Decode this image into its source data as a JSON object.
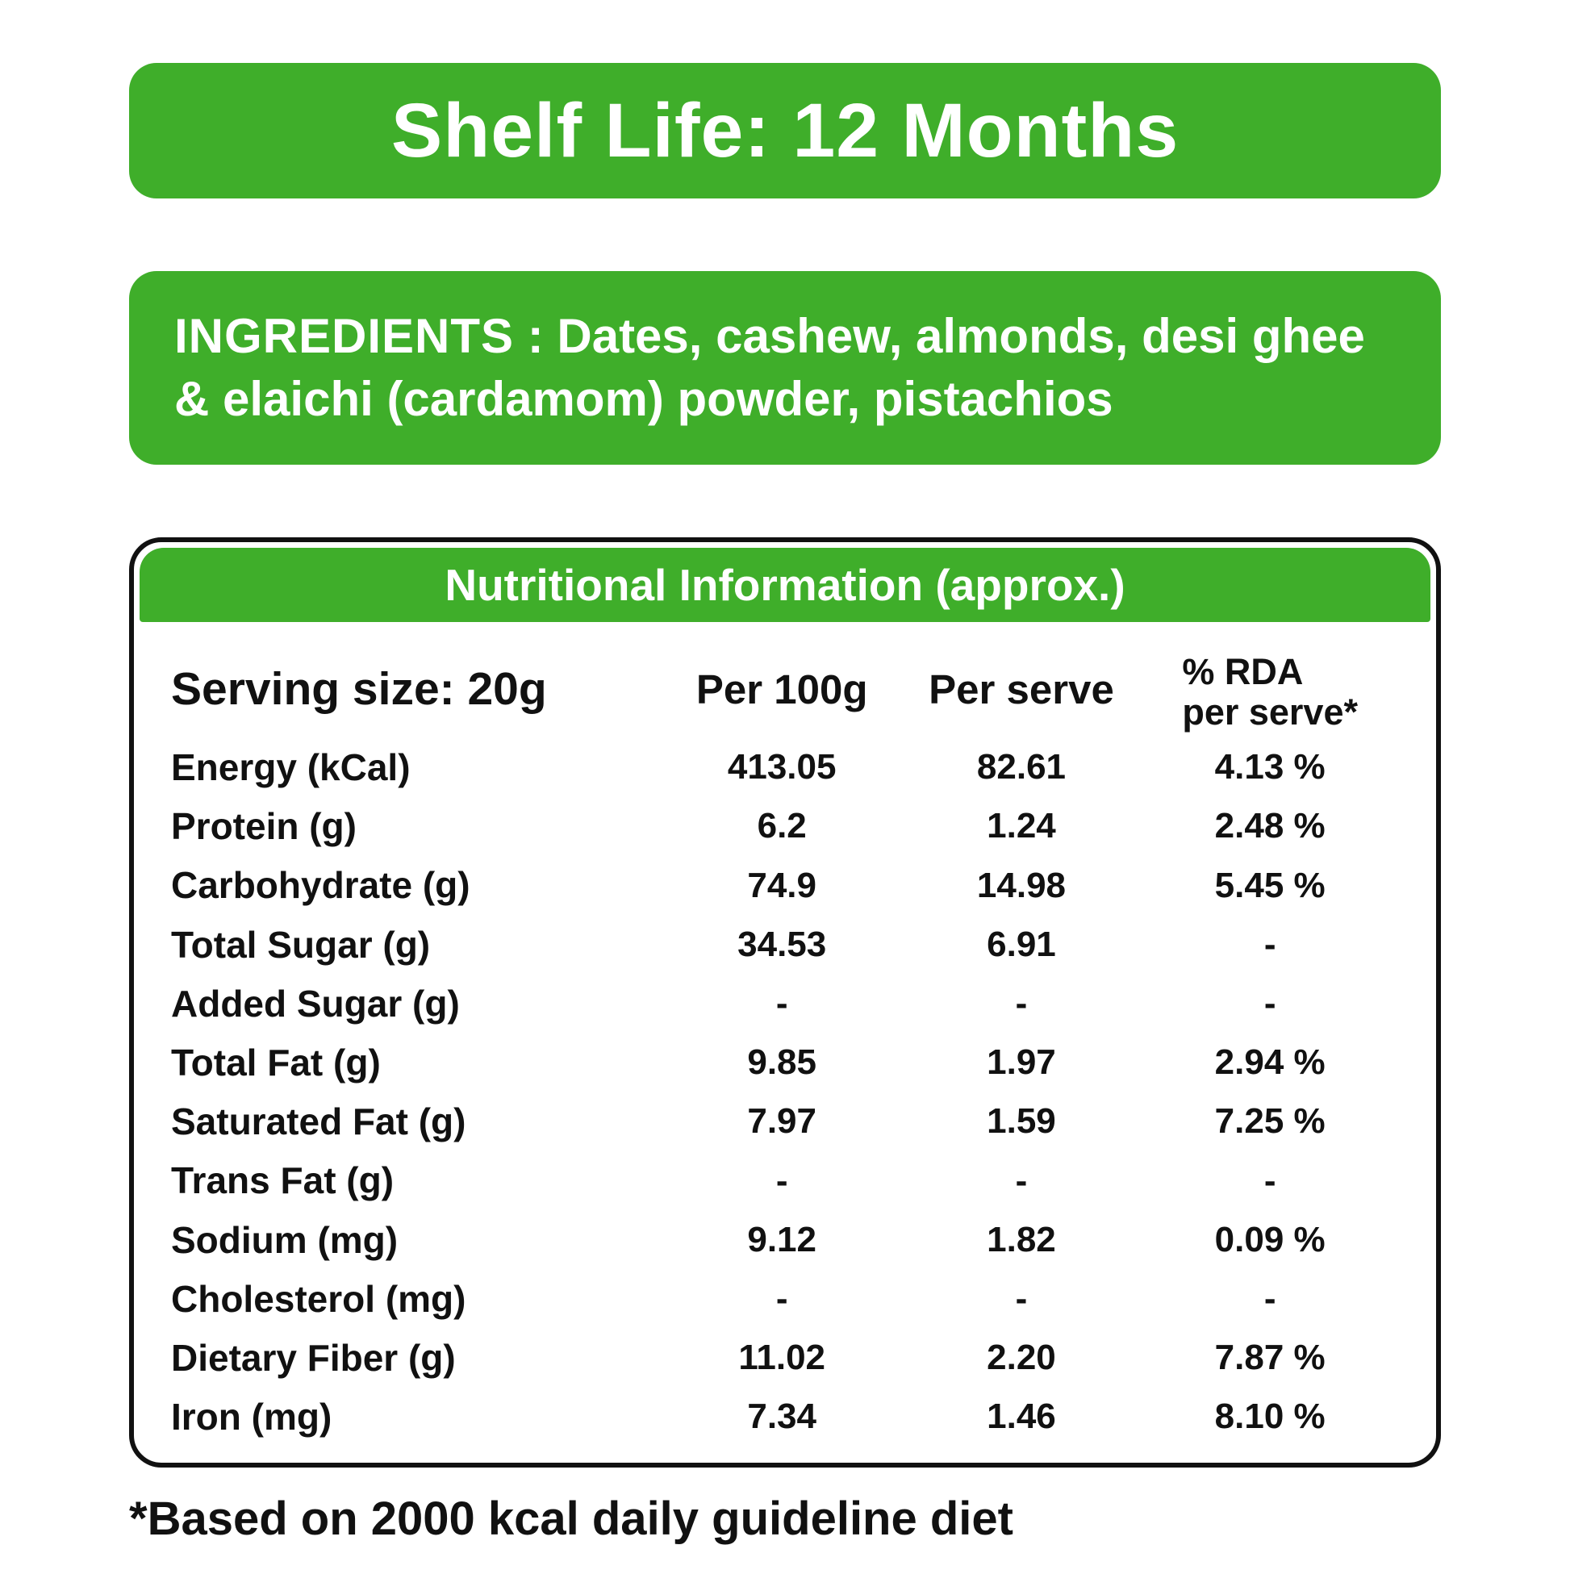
{
  "colors": {
    "green": "#3fae2a",
    "text": "#111111",
    "background": "#ffffff"
  },
  "banner": {
    "text": "Shelf Life: 12 Months"
  },
  "ingredients": {
    "label": "INGREDIENTS",
    "text": " : Dates, cashew, almonds, desi ghee & elaichi (cardamom) powder, pistachios"
  },
  "table": {
    "title": "Nutritional Information (approx.)",
    "header": {
      "serving": "Serving size: 20g",
      "per100g": "Per 100g",
      "per_serve": "Per serve",
      "rda_line1": "% RDA",
      "rda_line2": "per serve*"
    },
    "rows": [
      {
        "label": "Energy (kCal)",
        "per100g": "413.05",
        "per_serve": "82.61",
        "rda": "4.13 %"
      },
      {
        "label": "Protein (g)",
        "per100g": "6.2",
        "per_serve": "1.24",
        "rda": "2.48 %"
      },
      {
        "label": "Carbohydrate (g)",
        "per100g": "74.9",
        "per_serve": "14.98",
        "rda": "5.45 %"
      },
      {
        "label": "Total Sugar (g)",
        "per100g": "34.53",
        "per_serve": "6.91",
        "rda": "-"
      },
      {
        "label": "Added Sugar (g)",
        "per100g": "-",
        "per_serve": "-",
        "rda": "-"
      },
      {
        "label": "Total Fat (g)",
        "per100g": "9.85",
        "per_serve": "1.97",
        "rda": "2.94 %"
      },
      {
        "label": "Saturated Fat (g)",
        "per100g": "7.97",
        "per_serve": "1.59",
        "rda": "7.25 %"
      },
      {
        "label": "Trans Fat (g)",
        "per100g": "-",
        "per_serve": "-",
        "rda": "-"
      },
      {
        "label": "Sodium (mg)",
        "per100g": "9.12",
        "per_serve": "1.82",
        "rda": "0.09 %"
      },
      {
        "label": "Cholesterol (mg)",
        "per100g": "-",
        "per_serve": "-",
        "rda": "-"
      },
      {
        "label": "Dietary Fiber (g)",
        "per100g": "11.02",
        "per_serve": "2.20",
        "rda": "7.87 %"
      },
      {
        "label": "Iron (mg)",
        "per100g": "7.34",
        "per_serve": "1.46",
        "rda": "8.10 %"
      }
    ]
  },
  "footnote": "*Based on 2000 kcal daily guideline diet"
}
